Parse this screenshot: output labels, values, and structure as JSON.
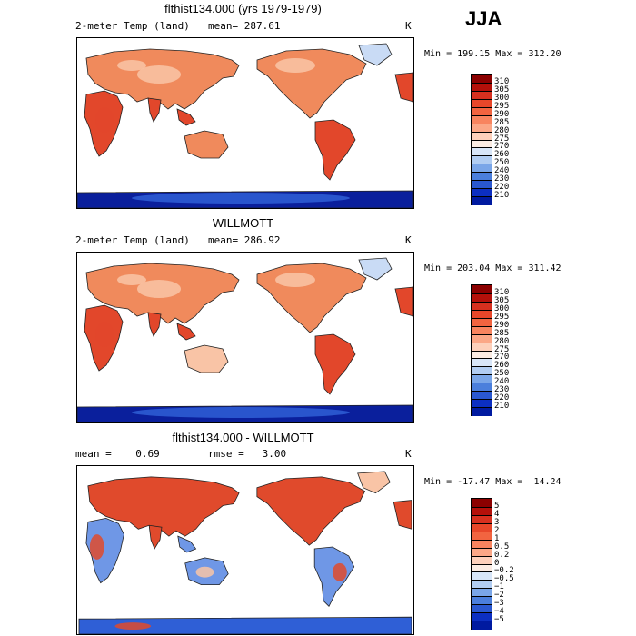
{
  "season": "JJA",
  "panels": [
    {
      "title": "flthist134.000 (yrs 1979-1979)",
      "left_label": "2-meter Temp (land)",
      "mean_label": "mean=",
      "mean_value": "287.61",
      "units": "K",
      "min_label": "Min =",
      "min_value": "199.15",
      "max_label": "Max =",
      "max_value": "312.20",
      "colorbar": {
        "levels": [
          "310",
          "305",
          "300",
          "295",
          "290",
          "285",
          "280",
          "275",
          "270",
          "260",
          "250",
          "240",
          "230",
          "220",
          "210"
        ],
        "colors": [
          "#8b0000",
          "#b4100a",
          "#d7301f",
          "#e8472a",
          "#f26440",
          "#f8845f",
          "#fba787",
          "#fdd0bb",
          "#fbece3",
          "#d8e6f8",
          "#b1cdf2",
          "#7aa6e8",
          "#4b7fdc",
          "#2a58d0",
          "#0c2fc2",
          "#001aa0"
        ]
      }
    },
    {
      "title": "WILLMOTT",
      "left_label": "2-meter Temp (land)",
      "mean_label": "mean=",
      "mean_value": "286.92",
      "units": "K",
      "min_label": "Min =",
      "min_value": "203.04",
      "max_label": "Max =",
      "max_value": "311.42",
      "colorbar": {
        "levels": [
          "310",
          "305",
          "300",
          "295",
          "290",
          "285",
          "280",
          "275",
          "270",
          "260",
          "250",
          "240",
          "230",
          "220",
          "210"
        ],
        "colors": [
          "#8b0000",
          "#b4100a",
          "#d7301f",
          "#e8472a",
          "#f26440",
          "#f8845f",
          "#fba787",
          "#fdd0bb",
          "#fbece3",
          "#d8e6f8",
          "#b1cdf2",
          "#7aa6e8",
          "#4b7fdc",
          "#2a58d0",
          "#0c2fc2",
          "#001aa0"
        ]
      }
    },
    {
      "title": "flthist134.000 - WILLMOTT",
      "left_label": "mean =",
      "mean_label": "rmse =",
      "left_value": "0.69",
      "mean_value": "3.00",
      "units": "K",
      "min_label": "Min =",
      "min_value": "-17.47",
      "max_label": "Max =",
      "max_value": "14.24",
      "colorbar": {
        "levels": [
          "5",
          "4",
          "3",
          "2",
          "1",
          "0.5",
          "0.2",
          "0",
          "−0.2",
          "−0.5",
          "−1",
          "−2",
          "−3",
          "−4",
          "−5"
        ],
        "colors": [
          "#8b0000",
          "#b4100a",
          "#d7301f",
          "#e8472a",
          "#f26440",
          "#f8845f",
          "#fba787",
          "#fdd0bb",
          "#fbece3",
          "#d8e6f8",
          "#b1cdf2",
          "#7aa6e8",
          "#4b7fdc",
          "#2a58d0",
          "#0c2fc2",
          "#001aa0"
        ]
      }
    }
  ],
  "map_colors": {
    "hot": "#e2472b",
    "warm": "#f08a5c",
    "mild": "#f9c4a6",
    "cool": "#c9dbf5",
    "cold": "#2f5fd6",
    "frozen": "#0a1f9c",
    "diff_pos": "#e04a2c",
    "diff_neg": "#6f97e6",
    "coast": "#222222"
  }
}
